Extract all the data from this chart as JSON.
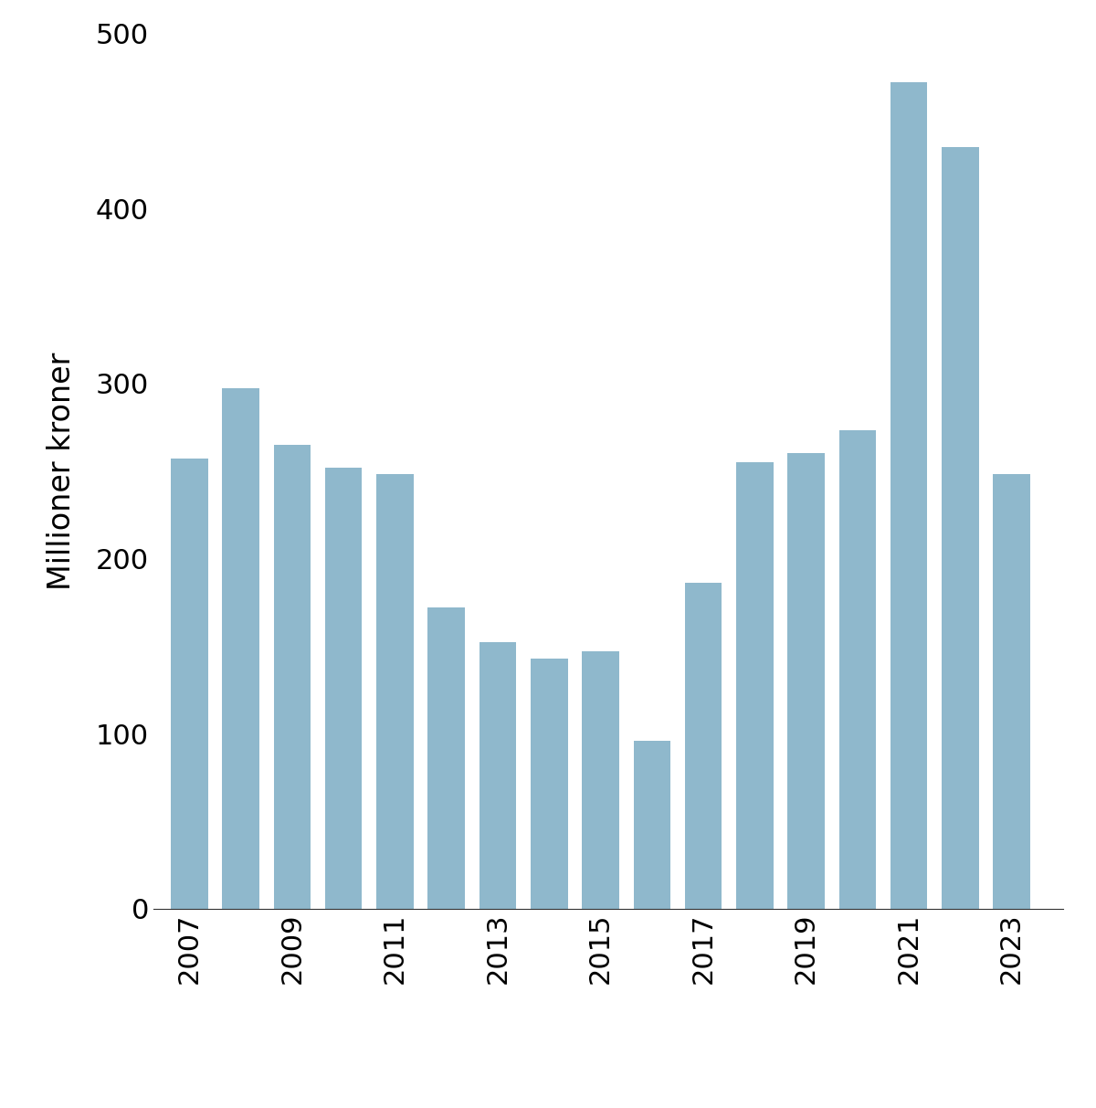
{
  "years": [
    2007,
    2008,
    2009,
    2010,
    2011,
    2012,
    2013,
    2014,
    2015,
    2016,
    2017,
    2018,
    2019,
    2020,
    2021,
    2022,
    2023
  ],
  "values": [
    257,
    297,
    265,
    252,
    248,
    172,
    152,
    143,
    147,
    96,
    186,
    255,
    260,
    273,
    472,
    435,
    248
  ],
  "bar_color": "#8fb8cc",
  "ylabel": "Millioner kroner",
  "ylim": [
    0,
    500
  ],
  "yticks": [
    0,
    100,
    200,
    300,
    400,
    500
  ],
  "xtick_labels": [
    "2007",
    "2009",
    "2011",
    "2013",
    "2015",
    "2017",
    "2019",
    "2021",
    "2023"
  ],
  "background_color": "#ffffff",
  "ylabel_fontsize": 24,
  "tick_fontsize": 22,
  "bar_width": 0.72
}
